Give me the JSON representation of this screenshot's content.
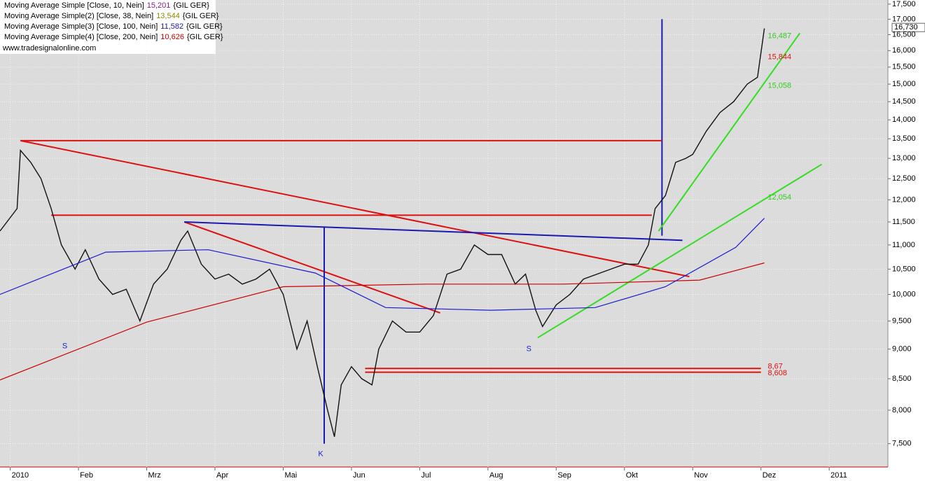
{
  "chart_data": {
    "type": "line",
    "log": true,
    "grid": true,
    "legend": [
      {
        "text": "Moving Average Simple [Close, 10, Nein]",
        "value": "15,201",
        "suffix": "{GIL GER}",
        "color": "#8b1a8b"
      },
      {
        "text": "Moving Average Simple(2) [Close, 38, Nein]",
        "value": "13,544",
        "suffix": "{GIL GER}",
        "color": "#8b8b00"
      },
      {
        "text": "Moving Average Simple(3) [Close, 100, Nein]",
        "value": "11,582",
        "suffix": "{GIL GER}",
        "color": "#1a1aa0"
      },
      {
        "text": "Moving Average Simple(4) [Close, 200, Nein]",
        "value": "10,626",
        "suffix": "{GIL GER}",
        "color": "#cc0000"
      }
    ],
    "source": "www.tradesignalonline.com",
    "xlim": [
      0.85,
      13.86
    ],
    "xticks": [
      {
        "value": 1,
        "label": "2010"
      },
      {
        "value": 2,
        "label": "Feb"
      },
      {
        "value": 3,
        "label": "Mrz"
      },
      {
        "value": 4,
        "label": "Apr"
      },
      {
        "value": 5,
        "label": "Mai"
      },
      {
        "value": 6,
        "label": "Jun"
      },
      {
        "value": 7,
        "label": "Jul"
      },
      {
        "value": 8,
        "label": "Aug"
      },
      {
        "value": 9,
        "label": "Sep"
      },
      {
        "value": 10,
        "label": "Okt"
      },
      {
        "value": 11,
        "label": "Nov"
      },
      {
        "value": 12,
        "label": "Dez"
      },
      {
        "value": 13,
        "label": "2011"
      }
    ],
    "ylim": [
      7170,
      17640
    ],
    "yticks": [
      {
        "value": 7500,
        "label": "7,500"
      },
      {
        "value": 8000,
        "label": "8,000"
      },
      {
        "value": 8500,
        "label": "8,500"
      },
      {
        "value": 9000,
        "label": "9,000"
      },
      {
        "value": 9500,
        "label": "9,500"
      },
      {
        "value": 10000,
        "label": "10,000"
      },
      {
        "value": 10500,
        "label": "10,500"
      },
      {
        "value": 11000,
        "label": "11,000"
      },
      {
        "value": 11500,
        "label": "11,500"
      },
      {
        "value": 12000,
        "label": "12,000"
      },
      {
        "value": 12500,
        "label": "12,500"
      },
      {
        "value": 13000,
        "label": "13,000"
      },
      {
        "value": 13500,
        "label": "13,500"
      },
      {
        "value": 14000,
        "label": "14,000"
      },
      {
        "value": 14500,
        "label": "14,500"
      },
      {
        "value": 15000,
        "label": "15,000"
      },
      {
        "value": 15500,
        "label": "15,500"
      },
      {
        "value": 16000,
        "label": "16,000"
      },
      {
        "value": 16500,
        "label": "16,500"
      },
      {
        "value": 17000,
        "label": "17,000"
      },
      {
        "value": 17500,
        "label": "17,500"
      }
    ],
    "last_price": {
      "value": 16730,
      "label": "16,730"
    },
    "series": [
      {
        "name": "Close",
        "color": "#111111",
        "x": [
          0.85,
          1.1,
          1.15,
          1.3,
          1.45,
          1.6,
          1.75,
          1.95,
          2.1,
          2.3,
          2.5,
          2.7,
          2.9,
          3.1,
          3.3,
          3.5,
          3.6,
          3.8,
          4.0,
          4.2,
          4.4,
          4.6,
          4.8,
          5.0,
          5.2,
          5.35,
          5.5,
          5.65,
          5.75,
          5.85,
          6.0,
          6.15,
          6.3,
          6.4,
          6.6,
          6.8,
          7.0,
          7.2,
          7.4,
          7.6,
          7.8,
          8.0,
          8.2,
          8.4,
          8.55,
          8.7,
          8.8,
          9.0,
          9.2,
          9.4,
          9.6,
          9.8,
          10.0,
          10.2,
          10.35,
          10.45,
          10.6,
          10.75,
          10.9,
          11.0,
          11.2,
          11.4,
          11.6,
          11.8,
          11.95,
          12.05
        ],
        "values": [
          11300,
          11800,
          13200,
          12900,
          12500,
          11800,
          11000,
          10500,
          10900,
          10300,
          10000,
          10100,
          9500,
          10200,
          10500,
          11100,
          11300,
          10600,
          10300,
          10400,
          10200,
          10300,
          10500,
          10000,
          9000,
          9500,
          8700,
          8000,
          7600,
          8400,
          8700,
          8500,
          8400,
          9000,
          9500,
          9300,
          9300,
          9600,
          10400,
          10500,
          11000,
          10800,
          10800,
          10200,
          10400,
          9700,
          9400,
          9800,
          10000,
          10300,
          10400,
          10500,
          10600,
          10600,
          11000,
          11800,
          12100,
          12900,
          13000,
          13100,
          13700,
          14200,
          14500,
          15000,
          15200,
          16700
        ]
      },
      {
        "name": "MA 200",
        "color": "#cc0000",
        "x": [
          0.85,
          3.0,
          5.0,
          7.1,
          9.1,
          11.1,
          12.05
        ],
        "values": [
          8480,
          9480,
          10150,
          10200,
          10200,
          10280,
          10626
        ]
      },
      {
        "name": "MA 100",
        "color": "#1a1ad0",
        "x": [
          0.85,
          2.4,
          3.9,
          5.47,
          6.5,
          8.04,
          9.57,
          10.6,
          11.63,
          12.05
        ],
        "values": [
          10000,
          10850,
          10900,
          10420,
          9750,
          9700,
          9750,
          10150,
          10950,
          11582
        ]
      }
    ],
    "trendlines": [
      {
        "color": "#dd1111",
        "x": [
          1.15,
          10.95
        ],
        "values": [
          13450,
          10350
        ]
      },
      {
        "color": "#dd1111",
        "x": [
          3.55,
          7.3
        ],
        "values": [
          11500,
          9650
        ]
      },
      {
        "color": "#1a1ab0",
        "x": [
          3.55,
          10.85
        ],
        "values": [
          11500,
          11100
        ]
      },
      {
        "color": "#1a1ab0",
        "x": [
          5.6,
          5.6
        ],
        "values": [
          11400,
          7500
        ]
      },
      {
        "color": "#1a1ab0",
        "x": [
          10.55,
          10.55
        ],
        "values": [
          17000,
          11200
        ]
      },
      {
        "color": "#dd1111",
        "x": [
          1.15,
          10.55
        ],
        "values": [
          13450,
          13450
        ]
      },
      {
        "color": "#dd1111",
        "x": [
          1.6,
          10.4
        ],
        "values": [
          11650,
          11650
        ]
      },
      {
        "color": "#dd1111",
        "x": [
          6.2,
          12.0
        ],
        "values": [
          8670,
          8670
        ]
      },
      {
        "color": "#dd1111",
        "x": [
          6.2,
          12.0
        ],
        "values": [
          8608,
          8608
        ]
      },
      {
        "color": "#33dd22",
        "x": [
          8.73,
          12.89
        ],
        "values": [
          9200,
          12850
        ]
      },
      {
        "color": "#33dd22",
        "x": [
          10.5,
          12.57
        ],
        "values": [
          11300,
          16550
        ]
      }
    ],
    "annotations": [
      {
        "text": "S",
        "color": "#1a1ad0",
        "x": 1.8,
        "y": 9050
      },
      {
        "text": "S",
        "color": "#1a1ad0",
        "x": 8.6,
        "y": 9000
      },
      {
        "text": "K",
        "color": "#1a1ad0",
        "x": 5.55,
        "y": 7350
      },
      {
        "text": "16,487",
        "color": "#33cc22",
        "x": 12.1,
        "y": 16450
      },
      {
        "text": "15,844",
        "color": "#dd1111",
        "x": 12.1,
        "y": 15800
      },
      {
        "text": "15,058",
        "color": "#33cc22",
        "x": 12.1,
        "y": 14950
      },
      {
        "text": "12,054",
        "color": "#33cc22",
        "x": 12.1,
        "y": 12054
      },
      {
        "text": "8,67",
        "color": "#dd1111",
        "x": 12.1,
        "y": 8700
      },
      {
        "text": "8,608",
        "color": "#dd1111",
        "x": 12.1,
        "y": 8590
      }
    ]
  }
}
